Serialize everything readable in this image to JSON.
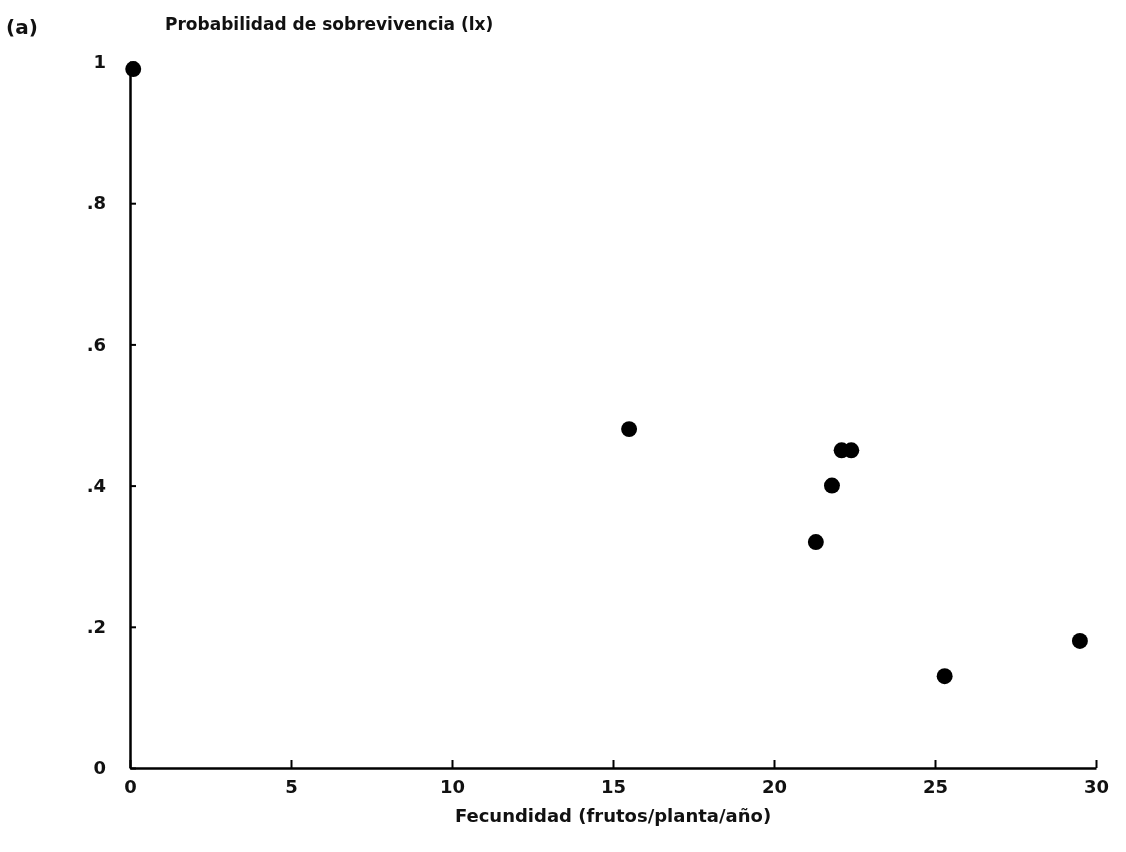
{
  "chart_data": {
    "type": "scatter",
    "xlabel": "Fecundidad (frutos/planta/año)",
    "ylabel": "Probabilidad de sobrevivencia (lx)",
    "annotations": [
      "(a)"
    ],
    "x": [
      0.1,
      15.5,
      21.3,
      21.8,
      22.1,
      22.4,
      25.3,
      29.5
    ],
    "values": [
      0.99,
      0.48,
      0.32,
      0.4,
      0.45,
      0.45,
      0.13,
      0.18
    ],
    "color": "#000000",
    "marker": "circle",
    "grid": false,
    "xlim": [
      0,
      30
    ],
    "xticks": [
      0,
      5,
      10,
      15,
      20,
      25,
      30
    ],
    "ylim": [
      0,
      1
    ],
    "yticks": [
      {
        "value": 0,
        "label": "0"
      },
      {
        "value": 0.2,
        "label": ".2"
      },
      {
        "value": 0.4,
        "label": ".4"
      },
      {
        "value": 0.6,
        "label": ".6"
      },
      {
        "value": 0.8,
        "label": ".8"
      },
      {
        "value": 1,
        "label": "1"
      }
    ]
  }
}
